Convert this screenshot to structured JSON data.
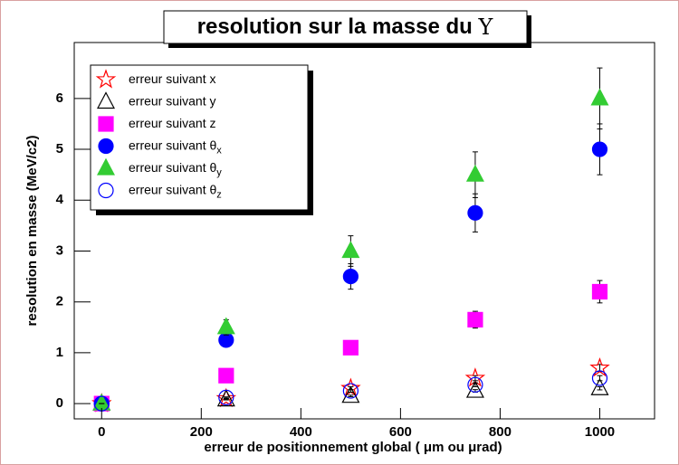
{
  "chart_data": {
    "type": "scatter",
    "title": "resolution sur la masse du",
    "title_symbol": "Υ",
    "xlabel": "erreur de positionnement global ( μm ou μrad)",
    "ylabel": "resolution en masse (MeV/c2)",
    "x": [
      0,
      250,
      500,
      750,
      1000
    ],
    "xlim": [
      -55,
      1110
    ],
    "xticks": [
      0,
      200,
      400,
      600,
      800,
      1000
    ],
    "ylim": [
      -0.3,
      7.1
    ],
    "yticks": [
      0,
      1,
      2,
      3,
      4,
      5,
      6
    ],
    "series": [
      {
        "name": "erreur suivant x",
        "color": "#ff0000",
        "marker": "star",
        "filled": false,
        "values": [
          0,
          0.1,
          0.3,
          0.5,
          0.7
        ],
        "errors": [
          0,
          0.01,
          0.03,
          0.05,
          0.07
        ]
      },
      {
        "name": "erreur suivant y",
        "color": "#000000",
        "marker": "triangle",
        "filled": false,
        "values": [
          0,
          0.08,
          0.15,
          0.25,
          0.3
        ],
        "errors": [
          0,
          0.008,
          0.015,
          0.025,
          0.03
        ]
      },
      {
        "name": "erreur suivant z",
        "color": "#ff00ff",
        "marker": "square",
        "filled": true,
        "values": [
          0,
          0.55,
          1.1,
          1.65,
          2.2
        ],
        "errors": [
          0,
          0.055,
          0.11,
          0.165,
          0.22
        ]
      },
      {
        "name": "erreur suivant  θ",
        "name_subscript": "x",
        "color": "#0000ff",
        "marker": "circle",
        "filled": true,
        "values": [
          0,
          1.25,
          2.5,
          3.75,
          5.0
        ],
        "errors": [
          0,
          0.125,
          0.25,
          0.375,
          0.5
        ]
      },
      {
        "name": "erreur suivant  θ",
        "name_subscript": "y",
        "color": "#33cc33",
        "marker": "triangle",
        "filled": true,
        "values": [
          0,
          1.5,
          3.0,
          4.5,
          6.0
        ],
        "errors": [
          0,
          0.15,
          0.3,
          0.45,
          0.6
        ]
      },
      {
        "name": "erreur suivant  θ",
        "name_subscript": "z",
        "color": "#0000ff",
        "marker": "circle",
        "filled": false,
        "values": [
          0,
          0.12,
          0.25,
          0.37,
          0.5
        ],
        "errors": [
          0,
          0.012,
          0.025,
          0.037,
          0.05
        ]
      }
    ]
  }
}
